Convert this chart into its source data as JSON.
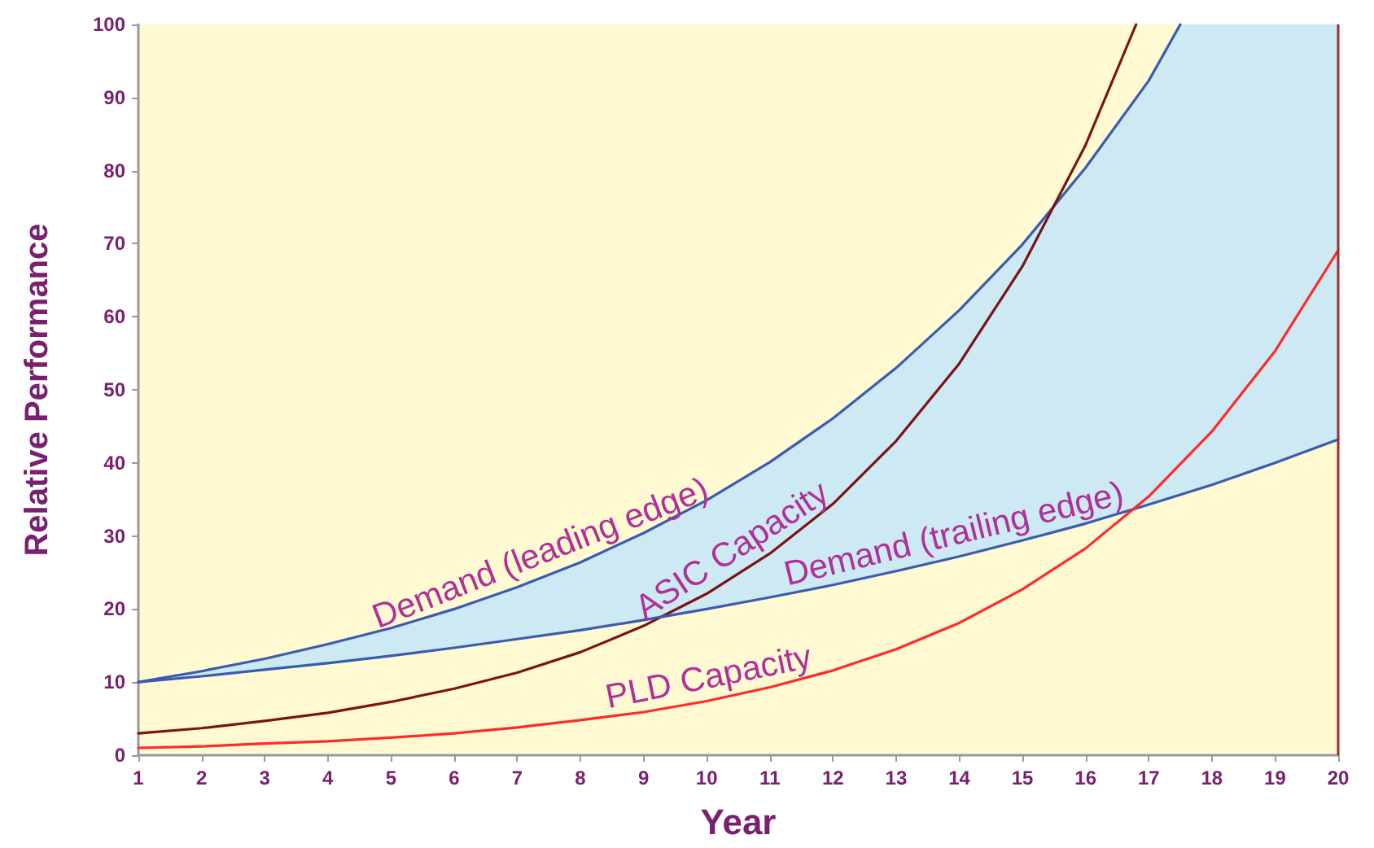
{
  "chart_data": {
    "type": "line",
    "xlabel": "Year",
    "ylabel": "Relative Performance",
    "xlim": [
      1,
      20
    ],
    "ylim": [
      0,
      100
    ],
    "xticks": [
      1,
      2,
      3,
      4,
      5,
      6,
      7,
      8,
      9,
      10,
      11,
      12,
      13,
      14,
      15,
      16,
      17,
      18,
      19,
      20
    ],
    "yticks": [
      0,
      10,
      20,
      30,
      40,
      50,
      60,
      70,
      80,
      90,
      100
    ],
    "grid": false,
    "legend": false,
    "marker": "none",
    "line_style": "solid",
    "series": [
      {
        "name": "Demand (leading edge)",
        "color": "#3a5bb0",
        "x": [
          1,
          2,
          3,
          4,
          5,
          6,
          7,
          8,
          9,
          10,
          11,
          12,
          13,
          14,
          15,
          16,
          17,
          17.5,
          18,
          19,
          20
        ],
        "values": [
          10,
          11.5,
          13.2,
          15.2,
          17.4,
          20.0,
          23.0,
          26.4,
          30.4,
          34.9,
          40.1,
          46.1,
          53.0,
          60.9,
          69.9,
          80.4,
          92.3,
          100,
          null,
          null,
          null
        ],
        "upper": [
          10,
          11.5,
          13.2,
          15.2,
          17.4,
          20.0,
          23.0,
          26.4,
          30.4,
          34.9,
          40.1,
          46.1,
          53.0,
          60.9,
          69.9,
          80.4,
          92.3,
          100,
          100,
          100,
          100
        ],
        "lower": [
          10,
          10.8,
          11.7,
          12.6,
          13.6,
          14.7,
          15.9,
          17.1,
          18.5,
          20.0,
          21.6,
          23.3,
          25.2,
          27.2,
          29.4,
          31.7,
          34.3,
          35.6,
          37.0,
          40.0,
          43.2
        ]
      },
      {
        "name": "ASIC Capacity",
        "color": "#7a1414",
        "x": [
          1,
          2,
          3,
          4,
          5,
          6,
          7,
          8,
          9,
          10,
          11,
          12,
          13,
          14,
          15,
          16,
          16.8
        ],
        "values": [
          3.0,
          3.7,
          4.7,
          5.8,
          7.3,
          9.1,
          11.3,
          14.1,
          17.7,
          22.1,
          27.6,
          34.4,
          43.0,
          53.6,
          66.9,
          83.5,
          100
        ]
      },
      {
        "name": "Demand (trailing edge)",
        "color": "#3a5bb0",
        "x": [
          1,
          2,
          3,
          4,
          5,
          6,
          7,
          8,
          9,
          10,
          11,
          12,
          13,
          14,
          15,
          16,
          17,
          18,
          19,
          20
        ],
        "values": [
          10,
          10.8,
          11.7,
          12.6,
          13.6,
          14.7,
          15.9,
          17.1,
          18.5,
          20.0,
          21.6,
          23.3,
          25.2,
          27.2,
          29.4,
          31.7,
          34.3,
          37.0,
          40.0,
          43.2
        ]
      },
      {
        "name": "PLD Capacity",
        "color": "#ff2a2a",
        "x": [
          1,
          2,
          3,
          4,
          5,
          6,
          7,
          8,
          9,
          10,
          11,
          12,
          13,
          14,
          15,
          16,
          17,
          18,
          19,
          20
        ],
        "values": [
          1.0,
          1.2,
          1.6,
          1.9,
          2.4,
          3.0,
          3.8,
          4.8,
          5.9,
          7.4,
          9.3,
          11.6,
          14.5,
          18.1,
          22.7,
          28.3,
          35.4,
          44.3,
          55.3,
          69.1
        ]
      }
    ]
  }
}
